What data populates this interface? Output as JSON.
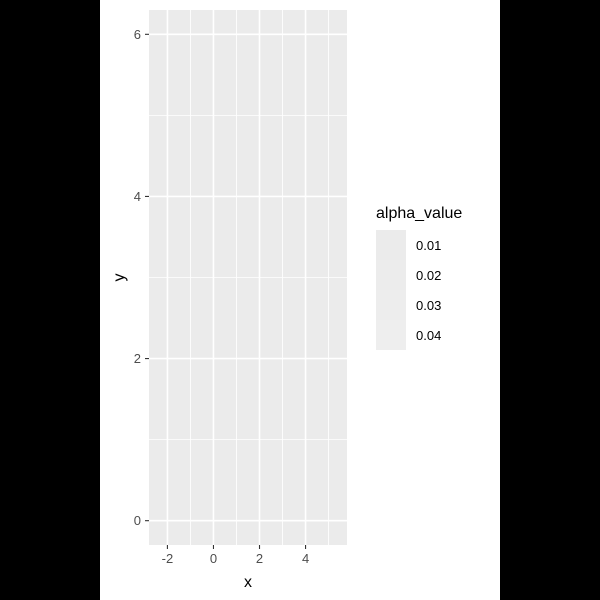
{
  "chart_data": {
    "type": "heatmap",
    "title": "",
    "xlabel": "x",
    "ylabel": "y",
    "xlim": [
      -2.8,
      5.8
    ],
    "ylim": [
      -0.3,
      6.3
    ],
    "x_ticks": [
      -2,
      0,
      2,
      4
    ],
    "x_tick_labels": [
      "-2",
      "0",
      "2",
      "4"
    ],
    "y_ticks": [
      0,
      2,
      4,
      6
    ],
    "y_tick_labels": [
      "0",
      "2",
      "4",
      "6"
    ],
    "x_minor_ticks": [
      -1,
      1,
      3,
      5
    ],
    "y_minor_ticks": [
      1,
      3,
      5
    ],
    "grid": true,
    "panel_background": "#ebebeb",
    "grid_color": "#ffffff",
    "fill_color": "#ffffff",
    "legend": {
      "title": "alpha_value",
      "placement": "right",
      "labels": [
        "0.01",
        "0.02",
        "0.03",
        "0.04"
      ],
      "values": [
        0.01,
        0.02,
        0.03,
        0.04
      ]
    }
  }
}
